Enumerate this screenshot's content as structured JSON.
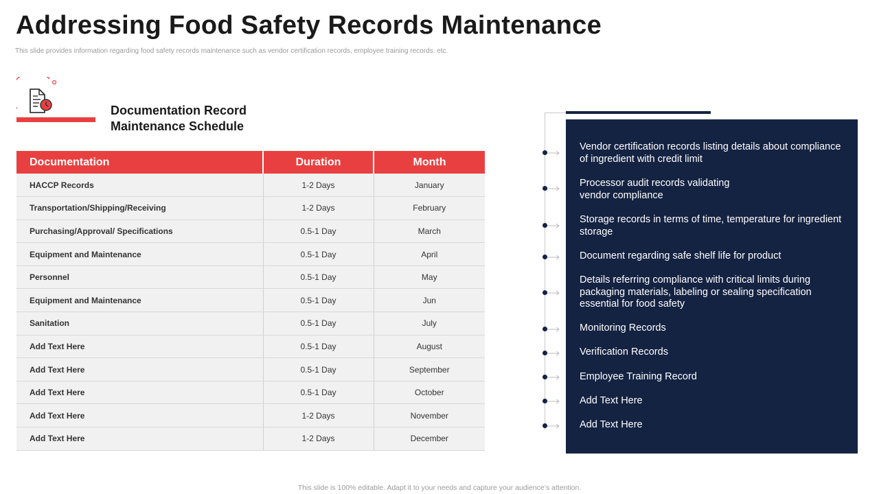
{
  "header": {
    "title": "Addressing Food Safety Records Maintenance",
    "subtitle": "This slide provides information regarding food safety records maintenance such as vendor certification records, employee training records. etc."
  },
  "section": {
    "heading_line1": "Documentation Record",
    "heading_line2": "Maintenance Schedule",
    "icon": "document-clock-icon"
  },
  "table": {
    "columns": [
      "Documentation",
      "Duration",
      "Month"
    ],
    "rows": [
      {
        "documentation": "HACCP Records",
        "duration": "1-2 Days",
        "month": "January"
      },
      {
        "documentation": "Transportation/Shipping/Receiving",
        "duration": "1-2 Days",
        "month": "February"
      },
      {
        "documentation": "Purchasing/Approval/ Specifications",
        "duration": "0.5-1 Day",
        "month": "March"
      },
      {
        "documentation": "Equipment and Maintenance",
        "duration": "0.5-1 Day",
        "month": "April"
      },
      {
        "documentation": "Personnel",
        "duration": "0.5-1 Day",
        "month": "May"
      },
      {
        "documentation": "Equipment and Maintenance",
        "duration": "0.5-1 Day",
        "month": "Jun"
      },
      {
        "documentation": "Sanitation",
        "duration": "0.5-1 Day",
        "month": "July"
      },
      {
        "documentation": "Add Text Here",
        "duration": "0.5-1 Day",
        "month": "August"
      },
      {
        "documentation": "Add Text Here",
        "duration": "0.5-1 Day",
        "month": "September"
      },
      {
        "documentation": "Add Text Here",
        "duration": "0.5-1 Day",
        "month": "October"
      },
      {
        "documentation": "Add Text Here",
        "duration": "1-2 Days",
        "month": "November"
      },
      {
        "documentation": "Add Text Here",
        "duration": "1-2 Days",
        "month": "December"
      }
    ]
  },
  "records_list": [
    "Vendor certification records listing details about compliance of ingredient with credit limit",
    "Processor audit records validating vendor compliance",
    "Storage records in terms of time, temperature for ingredient storage",
    "Document regarding safe shelf life for product",
    "Details referring compliance with critical limits during packaging materials, labeling or sealing specification essential for food safety",
    "Monitoring Records",
    "Verification Records",
    "Employee Training Record",
    "Add Text Here",
    "Add Text Here"
  ],
  "footer": "This slide is 100% editable. Adapt it to your needs and capture your audience’s attention.",
  "colors": {
    "accent_red": "#e84040",
    "navy": "#152342",
    "row_bg": "#f1f1f1"
  }
}
